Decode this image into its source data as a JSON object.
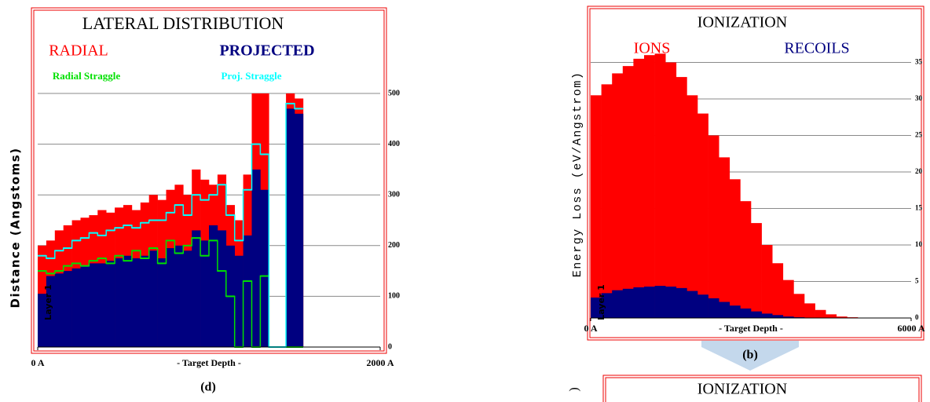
{
  "chart_data": [
    {
      "type": "histogram",
      "title": "LATERAL DISTRIBUTION",
      "x_label": "- Target Depth -",
      "y_label": "Distance (Angstoms)",
      "caption": "(d)",
      "annotation": "Layer 1",
      "bins": [
        0,
        50,
        100,
        150,
        200,
        250,
        300,
        350,
        400,
        450,
        500,
        550,
        600,
        650,
        700,
        750,
        800,
        850,
        900,
        950,
        1000,
        1050,
        1100,
        1150,
        1200,
        1250,
        1300,
        1350,
        1400,
        1450,
        1500,
        1550
      ],
      "series": [
        {
          "name": "RADIAL",
          "color": "#ff0000",
          "draw": "bar",
          "values": [
            200,
            210,
            230,
            240,
            250,
            255,
            260,
            270,
            265,
            275,
            280,
            270,
            285,
            300,
            290,
            310,
            320,
            300,
            350,
            330,
            320,
            340,
            280,
            250,
            340,
            500,
            500,
            0,
            0,
            500,
            490
          ]
        },
        {
          "name": "PROJECTED",
          "color": "#000080",
          "draw": "bar",
          "values": [
            105,
            140,
            145,
            150,
            155,
            160,
            165,
            165,
            170,
            175,
            180,
            175,
            180,
            190,
            175,
            195,
            200,
            190,
            230,
            210,
            240,
            230,
            200,
            180,
            220,
            350,
            310,
            0,
            0,
            470,
            460
          ]
        },
        {
          "name": "Radial Straggle",
          "color": "#00e000",
          "draw": "step",
          "values": [
            150,
            145,
            150,
            160,
            165,
            160,
            170,
            175,
            165,
            180,
            170,
            190,
            175,
            195,
            165,
            210,
            185,
            200,
            215,
            180,
            210,
            150,
            100,
            0,
            130,
            0,
            140,
            0,
            0,
            0,
            0
          ]
        },
        {
          "name": "Proj. Straggle",
          "color": "#00ffff",
          "draw": "step",
          "values": [
            180,
            175,
            190,
            195,
            210,
            215,
            225,
            220,
            230,
            235,
            240,
            235,
            245,
            250,
            250,
            265,
            280,
            260,
            300,
            290,
            300,
            320,
            260,
            210,
            310,
            400,
            380,
            0,
            0,
            480,
            470
          ]
        }
      ],
      "xlim": [
        0,
        2000
      ],
      "xticks": [
        {
          "value": 0,
          "label": "0 A"
        },
        {
          "value": 2000,
          "label": "2000 A"
        }
      ],
      "ylim": [
        0,
        500
      ],
      "yticks": [
        0,
        100,
        200,
        300,
        400,
        500
      ],
      "grid": true
    },
    {
      "type": "histogram",
      "title": "IONIZATION",
      "x_label": "- Target Depth -",
      "y_label": "Energy Loss (eV/Angstrom)",
      "caption": "(b)",
      "annotation": "Layer 1",
      "bins": [
        0,
        200,
        400,
        600,
        800,
        1000,
        1200,
        1400,
        1600,
        1800,
        2000,
        2200,
        2400,
        2600,
        2800,
        3000,
        3200,
        3400,
        3600,
        3800,
        4000,
        4200,
        4400,
        4600,
        4800,
        5000
      ],
      "series": [
        {
          "name": "IONS",
          "color": "#ff0000",
          "draw": "bar",
          "values": [
            30.5,
            32,
            33.5,
            34.5,
            35.5,
            36,
            36.2,
            35,
            33,
            30.5,
            28,
            25,
            22,
            19,
            16,
            13,
            10,
            7.5,
            5.2,
            3.3,
            2,
            1.1,
            0.5,
            0.2,
            0.1
          ]
        },
        {
          "name": "RECOILS",
          "color": "#000080",
          "draw": "bar",
          "values": [
            2.8,
            3.4,
            3.8,
            4.0,
            4.2,
            4.3,
            4.4,
            4.3,
            4.1,
            3.7,
            3.2,
            2.7,
            2.2,
            1.7,
            1.3,
            0.9,
            0.6,
            0.4,
            0.2,
            0.1,
            0.05,
            0,
            0,
            0,
            0
          ]
        }
      ],
      "xlim": [
        0,
        6000
      ],
      "xticks": [
        {
          "value": 0,
          "label": "0 A"
        },
        {
          "value": 6000,
          "label": "6000 A"
        }
      ],
      "ylim": [
        0,
        35
      ],
      "yticks": [
        0,
        5,
        10,
        15,
        20,
        25,
        30,
        35
      ],
      "grid": true
    }
  ],
  "partial_chart": {
    "title": "IONIZATION",
    "y_label": ")"
  }
}
